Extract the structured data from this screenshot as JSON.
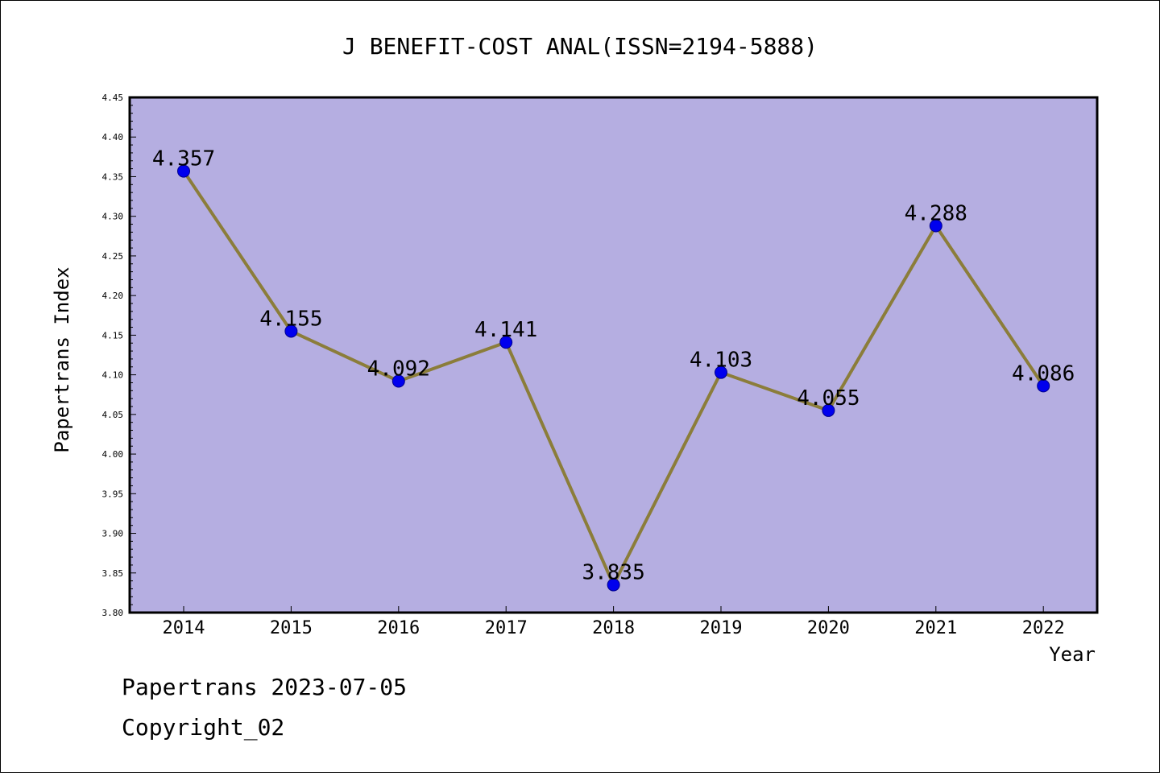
{
  "chart_data": {
    "type": "line",
    "title": "J BENEFIT-COST ANAL(ISSN=2194-5888)",
    "xlabel": "Year",
    "ylabel": "Papertrans Index",
    "categories": [
      "2014",
      "2015",
      "2016",
      "2017",
      "2018",
      "2019",
      "2020",
      "2021",
      "2022"
    ],
    "values": [
      4.357,
      4.155,
      4.092,
      4.141,
      3.835,
      4.103,
      4.055,
      4.288,
      4.086
    ],
    "data_labels": [
      "4.357",
      "4.155",
      "4.092",
      "4.141",
      "3.835",
      "4.103",
      "4.055",
      "4.288",
      "4.086"
    ],
    "ylim": [
      3.8,
      4.45
    ],
    "yticks": [
      "3.80",
      "3.85",
      "3.90",
      "3.95",
      "4.00",
      "4.05",
      "4.10",
      "4.15",
      "4.20",
      "4.25",
      "4.30",
      "4.35",
      "4.40",
      "4.45"
    ],
    "grid": false,
    "colors": {
      "plot_background": "#b5aee1",
      "line": "#8b7d3a",
      "marker": "#0000ee",
      "marker_edge": "#00008b"
    }
  },
  "footer": {
    "line1": "Papertrans 2023-07-05",
    "line2": "Copyright_02"
  }
}
